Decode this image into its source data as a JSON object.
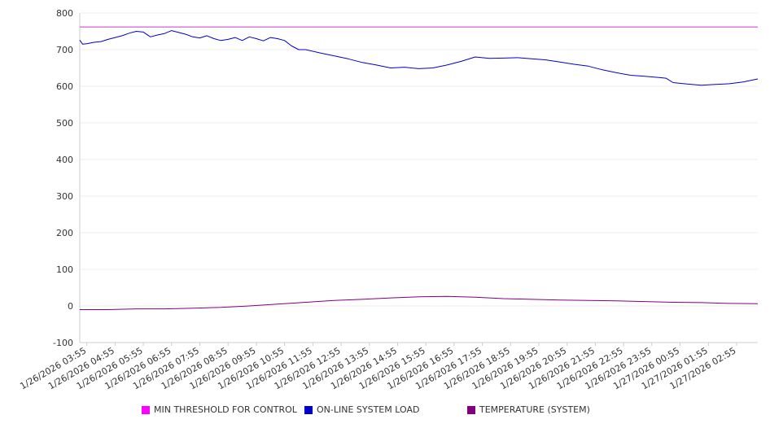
{
  "chart_data": {
    "type": "line",
    "title": "",
    "xlabel": "",
    "ylabel": "",
    "ylim": [
      -100,
      800
    ],
    "y_ticks": [
      -100,
      0,
      100,
      200,
      300,
      400,
      500,
      600,
      700,
      800
    ],
    "grid": true,
    "legend_position": "bottom",
    "x_tick_labels": [
      "1/26/2026 03:55",
      "1/26/2026 04:55",
      "1/26/2026 05:55",
      "1/26/2026 06:55",
      "1/26/2026 07:55",
      "1/26/2026 08:55",
      "1/26/2026 09:55",
      "1/26/2026 10:55",
      "1/26/2026 11:55",
      "1/26/2026 12:55",
      "1/26/2026 13:55",
      "1/26/2026 14:55",
      "1/26/2026 15:55",
      "1/26/2026 16:55",
      "1/26/2026 17:55",
      "1/26/2026 18:55",
      "1/26/2026 19:55",
      "1/26/2026 20:55",
      "1/26/2026 21:55",
      "1/26/2026 22:55",
      "1/26/2026 23:55",
      "1/27/2026 00:55",
      "1/27/2026 01:55",
      "1/27/2026 02:55"
    ],
    "series": [
      {
        "name": "MIN THRESHOLD FOR CONTROL",
        "color": "#cc33cc",
        "hours": [
          0,
          24
        ],
        "values": [
          762,
          762
        ]
      },
      {
        "name": "ON-LINE SYSTEM LOAD",
        "color": "#0000cc",
        "hours": [
          0,
          0.1,
          0.25,
          0.5,
          0.75,
          1.0,
          1.25,
          1.5,
          1.75,
          2.0,
          2.25,
          2.5,
          2.75,
          3.0,
          3.25,
          3.5,
          3.75,
          4.0,
          4.25,
          4.5,
          4.75,
          5.0,
          5.25,
          5.5,
          5.75,
          6.0,
          6.25,
          6.5,
          6.75,
          7.0,
          7.25,
          7.5,
          7.75,
          8.0,
          8.5,
          9.0,
          9.5,
          10.0,
          10.5,
          11.0,
          11.5,
          12.0,
          12.5,
          13.0,
          13.5,
          14.0,
          14.25,
          14.5,
          15.0,
          15.5,
          16.0,
          16.5,
          17.0,
          17.5,
          18.0,
          18.5,
          19.0,
          19.5,
          20.0,
          20.5,
          20.75,
          21.0,
          21.5,
          22.0,
          22.5,
          23.0,
          23.5,
          24.0
        ],
        "values": [
          726,
          715,
          716,
          720,
          722,
          728,
          733,
          738,
          745,
          750,
          748,
          735,
          740,
          744,
          752,
          747,
          742,
          735,
          732,
          738,
          730,
          725,
          728,
          733,
          725,
          735,
          730,
          724,
          733,
          730,
          725,
          710,
          700,
          700,
          691,
          683,
          675,
          665,
          658,
          650,
          652,
          648,
          650,
          658,
          668,
          680,
          678,
          676,
          677,
          678,
          675,
          672,
          666,
          660,
          655,
          645,
          637,
          630,
          627,
          624,
          622,
          610,
          606,
          603,
          605,
          607,
          612,
          620
        ]
      },
      {
        "name": "TEMPERATURE (SYSTEM)",
        "color": "#800080",
        "hours": [
          0,
          1,
          2,
          3,
          4,
          5,
          6,
          7,
          8,
          9,
          10,
          11,
          12,
          13,
          14,
          15,
          16,
          17,
          18,
          19,
          20,
          21,
          22,
          23,
          24
        ],
        "values": [
          -10,
          -10,
          -8,
          -8,
          -6,
          -4,
          0,
          5,
          10,
          15,
          18,
          22,
          25,
          26,
          24,
          20,
          18,
          16,
          15,
          14,
          12,
          10,
          9,
          7,
          6
        ]
      }
    ]
  }
}
